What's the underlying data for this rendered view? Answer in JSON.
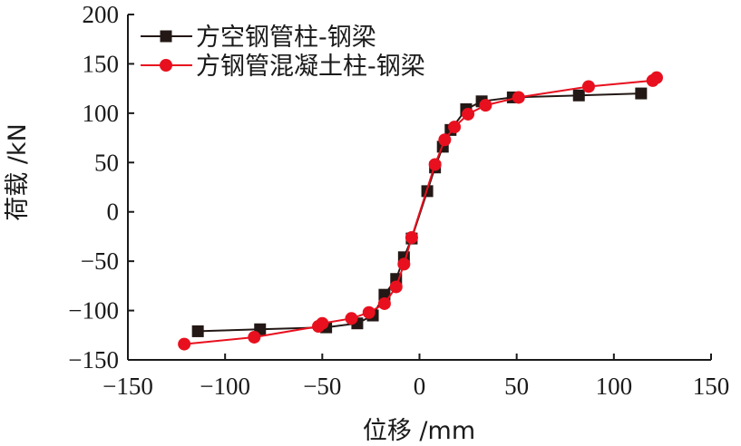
{
  "chart_data": {
    "type": "line",
    "xlabel": "位移 /mm",
    "ylabel": "荷载 /kN",
    "xlim": [
      -150,
      150
    ],
    "ylim": [
      -150,
      200
    ],
    "xticks": [
      -150,
      -100,
      -50,
      0,
      50,
      100,
      150
    ],
    "yticks": [
      -150,
      -100,
      -50,
      0,
      50,
      100,
      150,
      200
    ],
    "xtick_labels": [
      "−150",
      "−100",
      "−50",
      "0",
      "50",
      "100",
      "150"
    ],
    "ytick_labels": [
      "−150",
      "−100",
      "−50",
      "0",
      "50",
      "100",
      "150",
      "200"
    ],
    "grid": false,
    "legend_position": "top-left",
    "series": [
      {
        "name": "方空钢管柱-钢梁",
        "color": "#231815",
        "marker": "square",
        "points": [
          [
            -114,
            -121
          ],
          [
            -82,
            -119
          ],
          [
            -48,
            -117
          ],
          [
            -32,
            -113
          ],
          [
            -24,
            -105
          ],
          [
            -18,
            -84
          ],
          [
            -12,
            -68
          ],
          [
            -8,
            -46
          ],
          [
            -4,
            -27
          ],
          [
            4,
            21
          ],
          [
            8,
            45
          ],
          [
            12,
            66
          ],
          [
            16,
            83
          ],
          [
            24,
            104
          ],
          [
            32,
            112
          ],
          [
            48,
            116
          ],
          [
            82,
            118
          ],
          [
            114,
            120
          ]
        ]
      },
      {
        "name": "方钢管混凝土柱-钢梁",
        "color": "#e8101e",
        "marker": "circle",
        "points": [
          [
            -121,
            -134
          ],
          [
            -85,
            -127
          ],
          [
            -52,
            -116
          ],
          [
            -50,
            -113
          ],
          [
            -35,
            -108
          ],
          [
            -26,
            -102
          ],
          [
            -18,
            -93
          ],
          [
            -12,
            -76
          ],
          [
            -8,
            -53
          ],
          [
            -4,
            -26
          ],
          [
            8,
            48
          ],
          [
            13,
            73
          ],
          [
            18,
            86
          ],
          [
            25,
            99
          ],
          [
            34,
            108
          ],
          [
            51,
            116
          ],
          [
            87,
            127
          ],
          [
            120,
            133
          ],
          [
            122,
            136
          ]
        ]
      }
    ]
  }
}
